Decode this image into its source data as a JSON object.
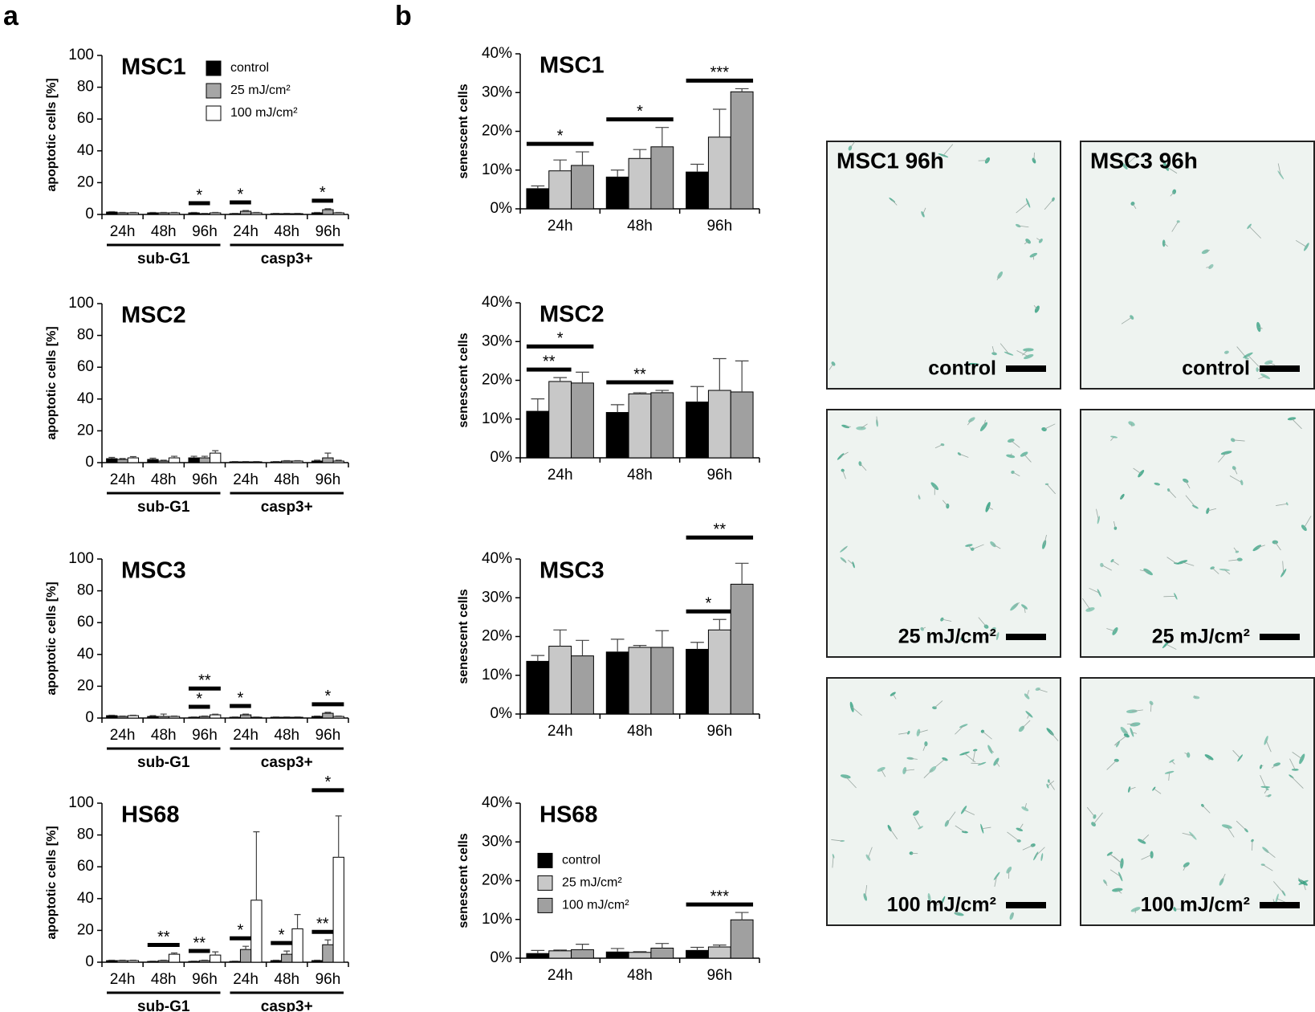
{
  "panel_labels": [
    "a",
    "b"
  ],
  "micrographs": {
    "columns": [
      "MSC1 96h",
      "MSC3 96h"
    ],
    "rows": [
      "control",
      "25 mJ/cm²",
      "100 mJ/cm²"
    ]
  },
  "chart_data": [
    {
      "type": "bar",
      "title": "MSC1",
      "ylabel": "apoptotic cells [%]",
      "ylim": [
        0,
        100
      ],
      "yticks": [
        0,
        20,
        40,
        60,
        80,
        100
      ],
      "legend": "upper center",
      "groups": [
        {
          "name": "sub-G1",
          "categories": [
            "24h",
            "48h",
            "96h"
          ]
        },
        {
          "name": "casp3+",
          "categories": [
            "24h",
            "48h",
            "96h"
          ]
        }
      ],
      "series": [
        {
          "name": "control",
          "color": "#000000",
          "values": [
            1.5,
            1,
            1,
            0.5,
            0.5,
            1
          ],
          "errors": [
            0.3,
            0.3,
            0.3,
            0.2,
            0.2,
            0.3
          ]
        },
        {
          "name": "25 mJ/cm²",
          "color": "#a6a6a6",
          "values": [
            1,
            1,
            0.5,
            2,
            0.5,
            3
          ],
          "errors": [
            0.3,
            0.3,
            0.2,
            0.5,
            0.2,
            0.6
          ]
        },
        {
          "name": "100 mJ/cm²",
          "color": "#ffffff",
          "values": [
            1,
            1,
            1,
            1,
            0.5,
            1
          ],
          "errors": [
            0.3,
            0.3,
            0.3,
            0.3,
            0.2,
            0.3
          ]
        }
      ],
      "significance": [
        {
          "label": "*",
          "category": 2,
          "from": 0,
          "to": 1
        },
        {
          "label": "*",
          "category": 3,
          "from": 0,
          "to": 1
        },
        {
          "label": "*",
          "category": 5,
          "from": 0,
          "to": 1
        }
      ]
    },
    {
      "type": "bar",
      "title": "MSC2",
      "ylabel": "apoptotic cells [%]",
      "ylim": [
        0,
        100
      ],
      "yticks": [
        0,
        20,
        40,
        60,
        80,
        100
      ],
      "groups": [
        {
          "name": "sub-G1",
          "categories": [
            "24h",
            "48h",
            "96h"
          ]
        },
        {
          "name": "casp3+",
          "categories": [
            "24h",
            "48h",
            "96h"
          ]
        }
      ],
      "series": [
        {
          "color": "#000000",
          "values": [
            2.5,
            2,
            3,
            0.5,
            0.5,
            1
          ],
          "errors": [
            0.8,
            0.8,
            1,
            0.2,
            0.2,
            0.5
          ]
        },
        {
          "color": "#a6a6a6",
          "values": [
            2,
            1,
            3,
            0.5,
            1,
            3
          ],
          "errors": [
            0.6,
            0.5,
            1,
            0.2,
            0.3,
            3
          ]
        },
        {
          "color": "#ffffff",
          "values": [
            3,
            3,
            6,
            0.5,
            1,
            1
          ],
          "errors": [
            0.8,
            1,
            1.5,
            0.2,
            0.3,
            0.5
          ]
        }
      ],
      "significance": []
    },
    {
      "type": "bar",
      "title": "MSC3",
      "ylabel": "apoptotic cells [%]",
      "ylim": [
        0,
        100
      ],
      "yticks": [
        0,
        20,
        40,
        60,
        80,
        100
      ],
      "groups": [
        {
          "name": "sub-G1",
          "categories": [
            "24h",
            "48h",
            "96h"
          ]
        },
        {
          "name": "casp3+",
          "categories": [
            "24h",
            "48h",
            "96h"
          ]
        }
      ],
      "series": [
        {
          "color": "#000000",
          "values": [
            1.5,
            1,
            0.5,
            0.5,
            0.5,
            1
          ],
          "errors": [
            0.3,
            0.5,
            0.2,
            0.2,
            0.2,
            0.3
          ]
        },
        {
          "color": "#a6a6a6",
          "values": [
            1,
            1,
            1,
            2,
            0.5,
            3
          ],
          "errors": [
            0.3,
            1.5,
            0.3,
            0.5,
            0.2,
            0.6
          ]
        },
        {
          "color": "#ffffff",
          "values": [
            1.5,
            1,
            2,
            0.5,
            0.5,
            1
          ],
          "errors": [
            0.3,
            0.3,
            0.4,
            0.2,
            0.2,
            0.3
          ]
        }
      ],
      "significance": [
        {
          "label": "*",
          "category": 2,
          "from": 0,
          "to": 1
        },
        {
          "label": "**",
          "category": 2,
          "from": 0,
          "to": 2
        },
        {
          "label": "*",
          "category": 3,
          "from": 0,
          "to": 1
        },
        {
          "label": "*",
          "category": 5,
          "from": 0,
          "to": 2
        }
      ]
    },
    {
      "type": "bar",
      "title": "HS68",
      "ylabel": "apoptotic cells [%]",
      "ylim": [
        0,
        100
      ],
      "yticks": [
        0,
        20,
        40,
        60,
        80,
        100
      ],
      "groups": [
        {
          "name": "sub-G1",
          "categories": [
            "24h",
            "48h",
            "96h"
          ]
        },
        {
          "name": "casp3+",
          "categories": [
            "24h",
            "48h",
            "96h"
          ]
        }
      ],
      "series": [
        {
          "color": "#000000",
          "values": [
            1,
            0.5,
            0.5,
            0.5,
            1,
            1
          ],
          "errors": [
            0.3,
            0.2,
            0.2,
            0.2,
            0.3,
            0.3
          ]
        },
        {
          "color": "#a6a6a6",
          "values": [
            1,
            1,
            1,
            8,
            5,
            11
          ],
          "errors": [
            0.3,
            0.3,
            0.3,
            2,
            2,
            3
          ]
        },
        {
          "color": "#ffffff",
          "values": [
            1,
            5,
            4.5,
            39,
            21,
            66
          ],
          "errors": [
            0.3,
            0.8,
            2,
            43,
            9,
            26
          ]
        }
      ],
      "significance": [
        {
          "label": "**",
          "category": 1,
          "from": 0,
          "to": 2
        },
        {
          "label": "**",
          "category": 2,
          "from": 0,
          "to": 1
        },
        {
          "label": "*",
          "category": 3,
          "from": 0,
          "to": 1
        },
        {
          "label": "*",
          "category": 4,
          "from": 0,
          "to": 1
        },
        {
          "label": "**",
          "category": 5,
          "from": 0,
          "to": 1
        },
        {
          "label": "*",
          "category": 5,
          "from": 0,
          "to": 2
        }
      ]
    },
    {
      "type": "bar",
      "title": "MSC1",
      "ylabel": "senescent cells",
      "ylim": [
        0,
        40
      ],
      "yticks": [
        {
          "value": 0,
          "label": "0%"
        },
        {
          "value": 10,
          "label": "10%"
        },
        {
          "value": 20,
          "label": "20%"
        },
        {
          "value": 30,
          "label": "30%"
        },
        {
          "value": 40,
          "label": "40%"
        }
      ],
      "categories": [
        "24h",
        "48h",
        "96h"
      ],
      "series": [
        {
          "color": "#000000",
          "values": [
            5.2,
            8.2,
            9.5
          ],
          "errors": [
            0.7,
            1.8,
            2
          ]
        },
        {
          "color": "#c8c8c8",
          "values": [
            9.8,
            13,
            18.5
          ],
          "errors": [
            2.8,
            2.3,
            7.2
          ]
        },
        {
          "color": "#a0a0a0",
          "values": [
            11.2,
            16,
            30.2
          ],
          "errors": [
            3.5,
            5,
            0.8
          ]
        }
      ],
      "significance": [
        {
          "label": "*",
          "category": 0,
          "from": 0,
          "to": 2
        },
        {
          "label": "*",
          "category": 1,
          "from": 0,
          "to": 2
        },
        {
          "label": "***",
          "category": 2,
          "from": 0,
          "to": 2
        }
      ]
    },
    {
      "type": "bar",
      "title": "MSC2",
      "ylabel": "senescent cells",
      "ylim": [
        0,
        40
      ],
      "yticks": [
        {
          "value": 0,
          "label": "0%"
        },
        {
          "value": 10,
          "label": "10%"
        },
        {
          "value": 20,
          "label": "20%"
        },
        {
          "value": 30,
          "label": "30%"
        },
        {
          "value": 40,
          "label": "40%"
        }
      ],
      "categories": [
        "24h",
        "48h",
        "96h"
      ],
      "series": [
        {
          "color": "#000000",
          "values": [
            12,
            11.7,
            14.4
          ],
          "errors": [
            3.2,
            2,
            4
          ]
        },
        {
          "color": "#c8c8c8",
          "values": [
            19.7,
            16.5,
            17.4
          ],
          "errors": [
            1,
            0.3,
            8.2
          ]
        },
        {
          "color": "#a0a0a0",
          "values": [
            19.3,
            16.8,
            17
          ],
          "errors": [
            2.8,
            0.6,
            8
          ]
        }
      ],
      "significance": [
        {
          "label": "**",
          "category": 0,
          "from": 0,
          "to": 1
        },
        {
          "label": "*",
          "category": 0,
          "from": 0,
          "to": 2
        },
        {
          "label": "**",
          "category": 1,
          "from": 0,
          "to": 2
        }
      ]
    },
    {
      "type": "bar",
      "title": "MSC3",
      "ylabel": "senescent cells",
      "ylim": [
        0,
        40
      ],
      "yticks": [
        {
          "value": 0,
          "label": "0%"
        },
        {
          "value": 10,
          "label": "10%"
        },
        {
          "value": 20,
          "label": "20%"
        },
        {
          "value": 30,
          "label": "30%"
        },
        {
          "value": 40,
          "label": "40%"
        }
      ],
      "categories": [
        "24h",
        "48h",
        "96h"
      ],
      "series": [
        {
          "color": "#000000",
          "values": [
            13.6,
            16,
            16.7
          ],
          "errors": [
            1.5,
            3.3,
            1.8
          ]
        },
        {
          "color": "#c8c8c8",
          "values": [
            17.5,
            17.2,
            21.7
          ],
          "errors": [
            4.2,
            0.5,
            2.7
          ]
        },
        {
          "color": "#a0a0a0",
          "values": [
            15,
            17.2,
            33.5
          ],
          "errors": [
            4,
            4.3,
            5.4
          ]
        }
      ],
      "significance": [
        {
          "label": "*",
          "category": 2,
          "from": 0,
          "to": 1
        },
        {
          "label": "**",
          "category": 2,
          "from": 0,
          "to": 2
        }
      ]
    },
    {
      "type": "bar",
      "title": "HS68",
      "ylabel": "senescent cells",
      "ylim": [
        0,
        40
      ],
      "legend": "center left",
      "yticks": [
        {
          "value": 0,
          "label": "0%"
        },
        {
          "value": 10,
          "label": "10%"
        },
        {
          "value": 20,
          "label": "20%"
        },
        {
          "value": 30,
          "label": "30%"
        },
        {
          "value": 40,
          "label": "40%"
        }
      ],
      "categories": [
        "24h",
        "48h",
        "96h"
      ],
      "series": [
        {
          "name": "control",
          "color": "#000000",
          "values": [
            1.2,
            1.6,
            2
          ],
          "errors": [
            0.8,
            0.9,
            0.8
          ]
        },
        {
          "name": "25 mJ/cm²",
          "color": "#c8c8c8",
          "values": [
            1.9,
            1.5,
            2.9
          ],
          "errors": [
            0.2,
            0.2,
            0.5
          ]
        },
        {
          "name": "100 mJ/cm²",
          "color": "#a0a0a0",
          "values": [
            2.2,
            2.6,
            9.9
          ],
          "errors": [
            1.4,
            1.2,
            1.9
          ]
        }
      ],
      "significance": [
        {
          "label": "***",
          "category": 2,
          "from": 0,
          "to": 2
        }
      ]
    }
  ]
}
